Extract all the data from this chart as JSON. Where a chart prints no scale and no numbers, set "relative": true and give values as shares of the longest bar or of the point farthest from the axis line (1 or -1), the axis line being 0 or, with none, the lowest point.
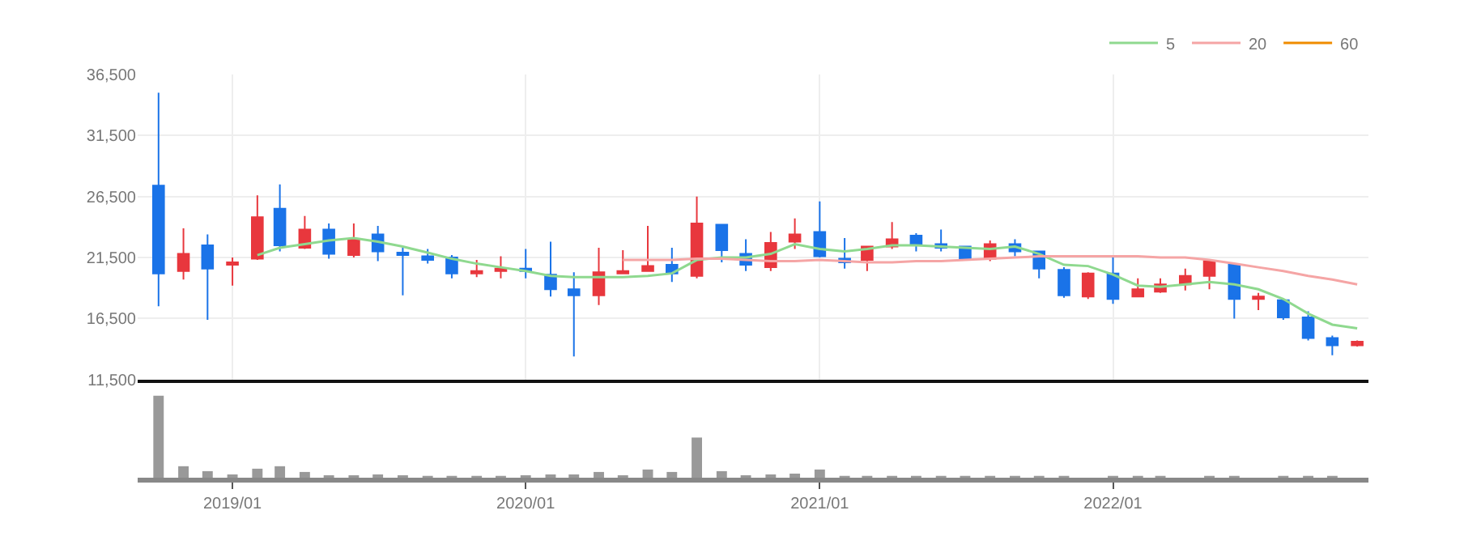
{
  "chart_data": [
    {
      "type": "candlestick",
      "x": [
        "2018-10",
        "2018-11",
        "2018-12",
        "2019-01",
        "2019-02",
        "2019-03",
        "2019-04",
        "2019-05",
        "2019-06",
        "2019-07",
        "2019-08",
        "2019-09",
        "2019-10",
        "2019-11",
        "2019-12",
        "2020-01",
        "2020-02",
        "2020-03",
        "2020-04",
        "2020-05",
        "2020-06",
        "2020-07",
        "2020-08",
        "2020-09",
        "2020-10",
        "2020-11",
        "2020-12",
        "2021-01",
        "2021-02",
        "2021-03",
        "2021-04",
        "2021-05",
        "2021-06",
        "2021-07",
        "2021-08",
        "2021-09",
        "2021-10",
        "2021-11",
        "2021-12",
        "2022-01",
        "2022-02",
        "2022-03",
        "2022-04",
        "2022-05",
        "2022-06",
        "2022-07",
        "2022-08",
        "2022-09",
        "2022-10",
        "2022-11"
      ],
      "ohlc": [
        [
          27400,
          35000,
          17500,
          20200
        ],
        [
          20400,
          23900,
          19700,
          21800
        ],
        [
          22500,
          23400,
          16400,
          20600
        ],
        [
          20900,
          21500,
          19200,
          21100
        ],
        [
          21400,
          26600,
          21300,
          24800
        ],
        [
          25500,
          27500,
          22000,
          22500
        ],
        [
          22300,
          24900,
          22200,
          23800
        ],
        [
          23800,
          24300,
          21400,
          21800
        ],
        [
          21700,
          24300,
          21500,
          23000
        ],
        [
          23400,
          24100,
          21200,
          22000
        ],
        [
          21900,
          22300,
          18400,
          21700
        ],
        [
          21600,
          22200,
          21000,
          21300
        ],
        [
          21500,
          21700,
          19800,
          20200
        ],
        [
          20200,
          21300,
          19900,
          20400
        ],
        [
          20400,
          21600,
          19800,
          20600
        ],
        [
          20600,
          22200,
          19800,
          20400
        ],
        [
          20100,
          22800,
          18300,
          18900
        ],
        [
          18900,
          20300,
          13400,
          18400
        ],
        [
          18400,
          22300,
          17600,
          20300
        ],
        [
          20200,
          22100,
          20200,
          20400
        ],
        [
          20400,
          24100,
          20400,
          20800
        ],
        [
          20900,
          22300,
          19500,
          20200
        ],
        [
          20000,
          26500,
          19800,
          24300
        ],
        [
          24200,
          24200,
          21100,
          22100
        ],
        [
          21800,
          23000,
          20400,
          20900
        ],
        [
          20700,
          23600,
          20400,
          22700
        ],
        [
          22800,
          24700,
          22200,
          23400
        ],
        [
          23600,
          26100,
          21500,
          21600
        ],
        [
          21400,
          23100,
          20600,
          21100
        ],
        [
          21300,
          22400,
          20400,
          22400
        ],
        [
          22400,
          24400,
          22200,
          23000
        ],
        [
          23300,
          23500,
          22000,
          22600
        ],
        [
          22600,
          23800,
          22000,
          22300
        ],
        [
          22400,
          22400,
          21400,
          21400
        ],
        [
          21400,
          22900,
          21200,
          22600
        ],
        [
          22600,
          23000,
          21600,
          22000
        ],
        [
          22000,
          22000,
          19800,
          20600
        ],
        [
          20500,
          20700,
          18200,
          18400
        ],
        [
          18300,
          20300,
          18100,
          20200
        ],
        [
          20200,
          21500,
          17700,
          18100
        ],
        [
          18300,
          19800,
          18300,
          18900
        ],
        [
          18700,
          19800,
          18600,
          19300
        ],
        [
          19300,
          20600,
          18800,
          20000
        ],
        [
          20000,
          21200,
          18900,
          21200
        ],
        [
          20900,
          21000,
          16500,
          18100
        ],
        [
          18100,
          18600,
          17200,
          18300
        ],
        [
          18000,
          18100,
          16400,
          16600
        ],
        [
          16600,
          17100,
          14700,
          14900
        ],
        [
          14900,
          15100,
          13500,
          14300
        ],
        [
          14300,
          14700,
          14200,
          14600
        ]
      ],
      "colors": [
        "#1a73e8",
        "#e8373d",
        "#1a73e8",
        "#e8373d",
        "#e8373d",
        "#1a73e8",
        "#e8373d",
        "#1a73e8",
        "#e8373d",
        "#1a73e8",
        "#1a73e8",
        "#1a73e8",
        "#1a73e8",
        "#e8373d",
        "#e8373d",
        "#1a73e8",
        "#1a73e8",
        "#1a73e8",
        "#e8373d",
        "#e8373d",
        "#e8373d",
        "#1a73e8",
        "#e8373d",
        "#1a73e8",
        "#1a73e8",
        "#e8373d",
        "#e8373d",
        "#1a73e8",
        "#1a73e8",
        "#e8373d",
        "#e8373d",
        "#1a73e8",
        "#1a73e8",
        "#1a73e8",
        "#e8373d",
        "#1a73e8",
        "#1a73e8",
        "#1a73e8",
        "#e8373d",
        "#1a73e8",
        "#e8373d",
        "#e8373d",
        "#e8373d",
        "#e8373d",
        "#1a73e8",
        "#e8373d",
        "#1a73e8",
        "#1a73e8",
        "#1a73e8",
        "#e8373d"
      ],
      "series": [
        {
          "type": "line",
          "name": "5",
          "color": "#8fd98f",
          "values": [
            null,
            null,
            null,
            null,
            21700,
            22300,
            22600,
            22900,
            23100,
            22800,
            22400,
            21900,
            21400,
            21000,
            20700,
            20400,
            20000,
            19900,
            19900,
            19900,
            20000,
            20200,
            21300,
            21500,
            21500,
            21800,
            22600,
            22200,
            22000,
            22200,
            22500,
            22500,
            22400,
            22300,
            22200,
            22400,
            21800,
            20900,
            20800,
            20100,
            19200,
            19100,
            19300,
            19500,
            19300,
            18900,
            18100,
            16900,
            16000,
            15700
          ]
        },
        {
          "type": "line",
          "name": "20",
          "color": "#f5a5a5",
          "values": [
            null,
            null,
            null,
            null,
            null,
            null,
            null,
            null,
            null,
            null,
            null,
            null,
            null,
            null,
            null,
            null,
            null,
            null,
            null,
            21300,
            21300,
            21300,
            21400,
            21400,
            21300,
            21200,
            21200,
            21300,
            21200,
            21100,
            21100,
            21200,
            21200,
            21300,
            21400,
            21500,
            21600,
            21600,
            21600,
            21600,
            21600,
            21500,
            21500,
            21300,
            21000,
            20700,
            20400,
            20000,
            19700,
            19300
          ]
        },
        {
          "type": "line",
          "name": "60",
          "color": "#f08c00",
          "values": [
            null,
            null,
            null,
            null,
            null,
            null,
            null,
            null,
            null,
            null,
            null,
            null,
            null,
            null,
            null,
            null,
            null,
            null,
            null,
            null,
            null,
            null,
            null,
            null,
            null,
            null,
            null,
            null,
            null,
            null,
            null,
            null,
            null,
            null,
            null,
            null,
            null,
            null,
            null,
            null,
            null,
            null,
            null,
            null,
            null,
            null,
            null,
            null,
            null,
            null
          ]
        }
      ],
      "xlim": [
        "2018-09-05",
        "2022-11-15"
      ],
      "xticks": [
        {
          "value": "2019-01",
          "label": null
        },
        {
          "value": "2020-01",
          "label": null
        },
        {
          "value": "2021-01",
          "label": null
        },
        {
          "value": "2022-01",
          "label": null
        }
      ],
      "ylim": [
        11500,
        36500
      ],
      "yticks": [
        {
          "value": 11500,
          "label": "11,500"
        },
        {
          "value": 16500,
          "label": "16,500"
        },
        {
          "value": 21500,
          "label": "21,500"
        },
        {
          "value": 26500,
          "label": "26,500"
        },
        {
          "value": 31500,
          "label": "31,500"
        },
        {
          "value": 36500,
          "label": "36,500"
        }
      ],
      "grid": true,
      "legend": "top right",
      "tick_labels": "y"
    },
    {
      "type": "bar",
      "relative": true,
      "color": "#999999",
      "x": [
        "2018-10",
        "2018-11",
        "2018-12",
        "2019-01",
        "2019-02",
        "2019-03",
        "2019-04",
        "2019-05",
        "2019-06",
        "2019-07",
        "2019-08",
        "2019-09",
        "2019-10",
        "2019-11",
        "2019-12",
        "2020-01",
        "2020-02",
        "2020-03",
        "2020-04",
        "2020-05",
        "2020-06",
        "2020-07",
        "2020-08",
        "2020-09",
        "2020-10",
        "2020-11",
        "2020-12",
        "2021-01",
        "2021-02",
        "2021-03",
        "2021-04",
        "2021-05",
        "2021-06",
        "2021-07",
        "2021-08",
        "2021-09",
        "2021-10",
        "2021-11",
        "2021-12",
        "2022-01",
        "2022-02",
        "2022-03",
        "2022-04",
        "2022-05",
        "2022-06",
        "2022-07",
        "2022-08",
        "2022-09",
        "2022-10",
        "2022-11"
      ],
      "values": [
        1,
        0.14,
        0.08,
        0.04,
        0.11,
        0.14,
        0.07,
        0.03,
        0.03,
        0.04,
        0.03,
        0.01,
        0.01,
        0.01,
        0.01,
        0.03,
        0.04,
        0.04,
        0.07,
        0.03,
        0.1,
        0.07,
        0.49,
        0.08,
        0.03,
        0.04,
        0.05,
        0.1,
        0.01,
        0.01,
        0.02,
        0.01,
        0.02,
        0.01,
        0.02,
        0.01,
        0.01,
        0.01,
        0,
        0.01,
        0.01,
        0.01,
        0,
        0.01,
        0.01,
        0,
        0.01,
        0.01,
        0.01,
        0
      ],
      "xlim": [
        "2018-09-05",
        "2022-11-15"
      ],
      "xticks": [
        {
          "value": "2019-01",
          "label": "2019/01"
        },
        {
          "value": "2020-01",
          "label": "2020/01"
        },
        {
          "value": "2021-01",
          "label": "2021/01"
        },
        {
          "value": "2022-01",
          "label": "2022/01"
        }
      ],
      "tick_labels": "x"
    }
  ]
}
